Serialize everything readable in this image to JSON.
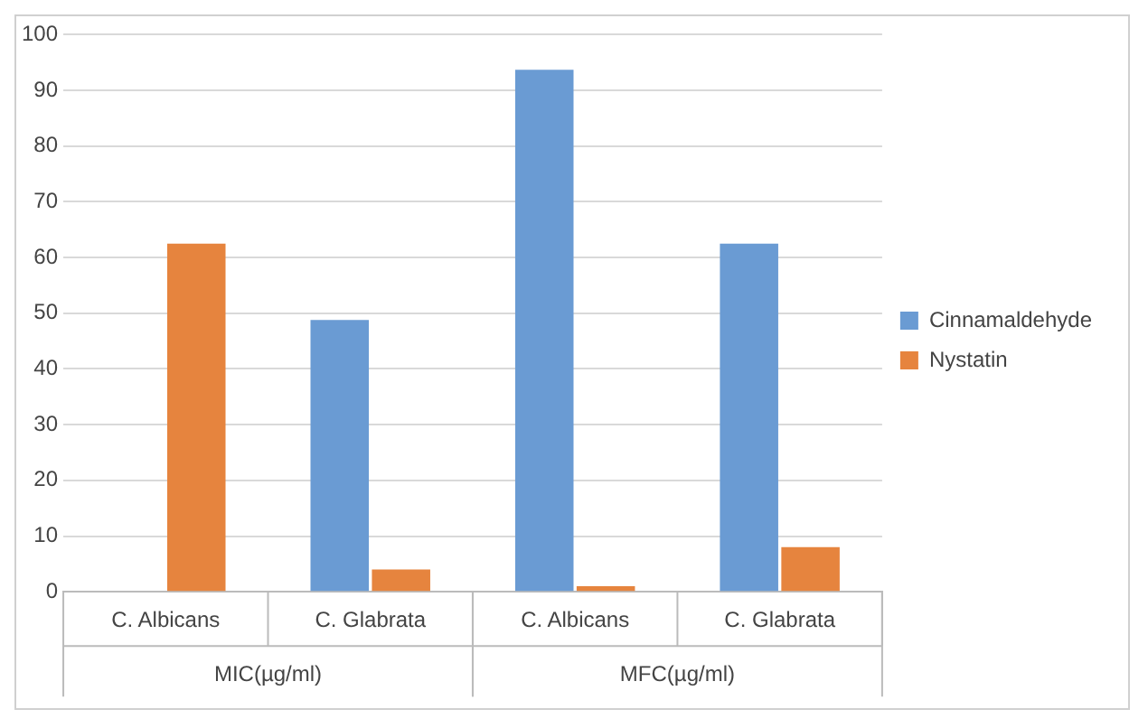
{
  "chart_data": {
    "type": "bar",
    "categories": [
      "C. Albicans",
      "C. Glabrata",
      "C. Albicans",
      "C. Glabrata"
    ],
    "series": [
      {
        "name": "Cinnamaldehyde",
        "color": "#6a9bd3",
        "values": [
          null,
          48.8,
          93.7,
          62.5
        ]
      },
      {
        "name": "Nystatin",
        "color": "#e6843e",
        "values": [
          62.5,
          4,
          1,
          8
        ]
      }
    ],
    "ylim": [
      0,
      100
    ],
    "yticks": [
      0,
      10,
      20,
      30,
      40,
      50,
      60,
      70,
      80,
      90,
      100
    ],
    "grid": "y",
    "legend": "right",
    "annotations": [
      "MIC(µg/ml)",
      "MFC(µg/ml)"
    ]
  }
}
